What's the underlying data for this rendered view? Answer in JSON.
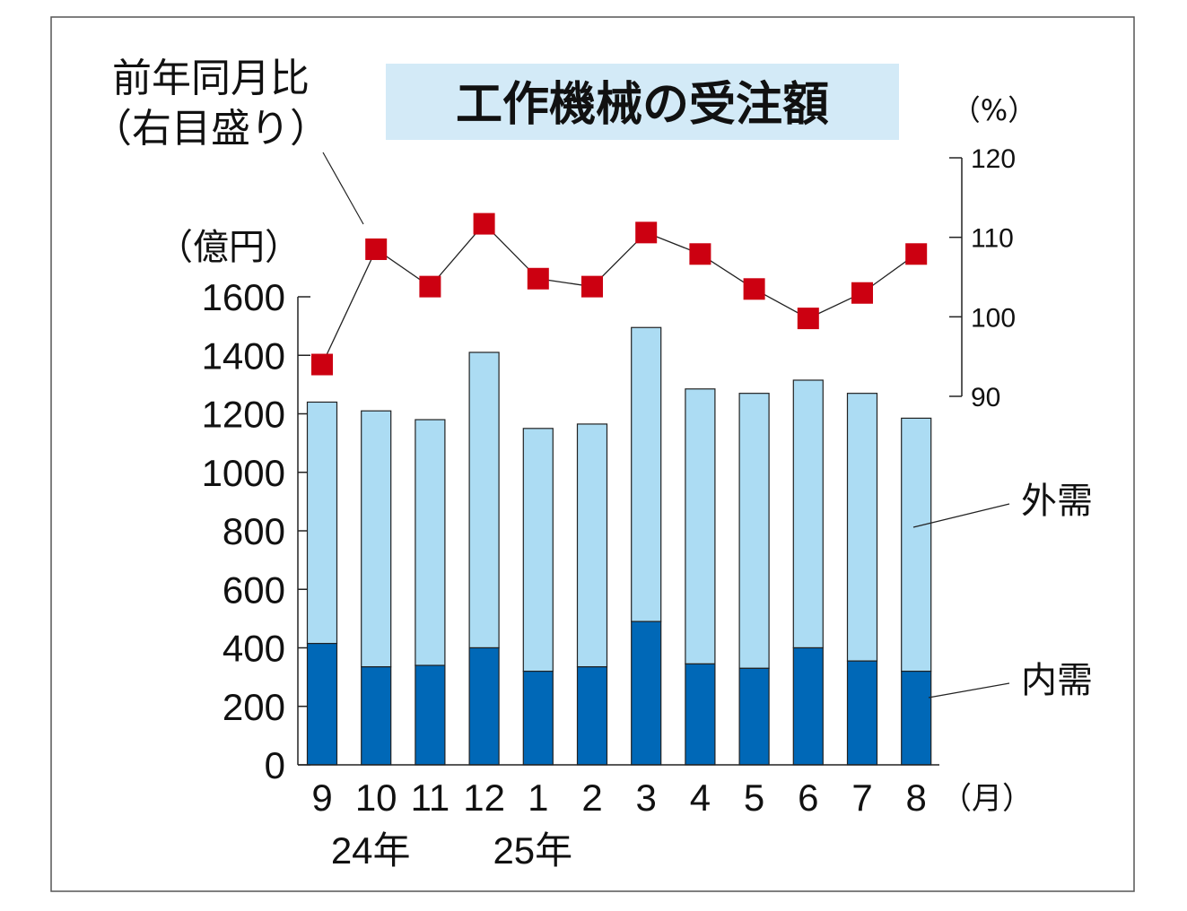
{
  "chart_data": {
    "type": "bar",
    "title": "工作機械の受注額",
    "categories": [
      "9",
      "10",
      "11",
      "12",
      "1",
      "2",
      "3",
      "4",
      "5",
      "6",
      "7",
      "8"
    ],
    "year_labels": [
      {
        "category": "10",
        "text": "24年"
      },
      {
        "category": "1",
        "text": "25年"
      }
    ],
    "x_unit": "（月）",
    "left_axis": {
      "unit": "（億円）",
      "ylim": [
        0,
        1600
      ],
      "ticks": [
        0,
        200,
        400,
        600,
        800,
        1000,
        1200,
        1400,
        1600
      ]
    },
    "right_axis": {
      "unit": "（%）",
      "ylim": [
        90,
        120
      ],
      "ticks": [
        90,
        100,
        110,
        120
      ]
    },
    "series": [
      {
        "name": "内需",
        "type": "stacked-bar",
        "color": "#0068b7",
        "values": [
          415,
          335,
          340,
          400,
          320,
          335,
          490,
          345,
          330,
          400,
          355,
          320
        ]
      },
      {
        "name": "外需",
        "type": "stacked-bar",
        "color": "#acdcf3",
        "values": [
          825,
          875,
          840,
          1010,
          830,
          830,
          1005,
          940,
          940,
          915,
          915,
          865
        ]
      },
      {
        "name": "前年同月比",
        "type": "line",
        "axis": "right",
        "color": "#cc0011",
        "values": [
          94.0,
          108.5,
          103.8,
          111.7,
          104.8,
          103.8,
          110.6,
          107.9,
          103.5,
          99.8,
          103.0,
          107.9
        ]
      }
    ],
    "annotation_line": [
      "前年同月比",
      "（右目盛り）"
    ],
    "annotation_outer": "外需",
    "annotation_inner": "内需",
    "grid": false,
    "legend": "inline labels"
  }
}
